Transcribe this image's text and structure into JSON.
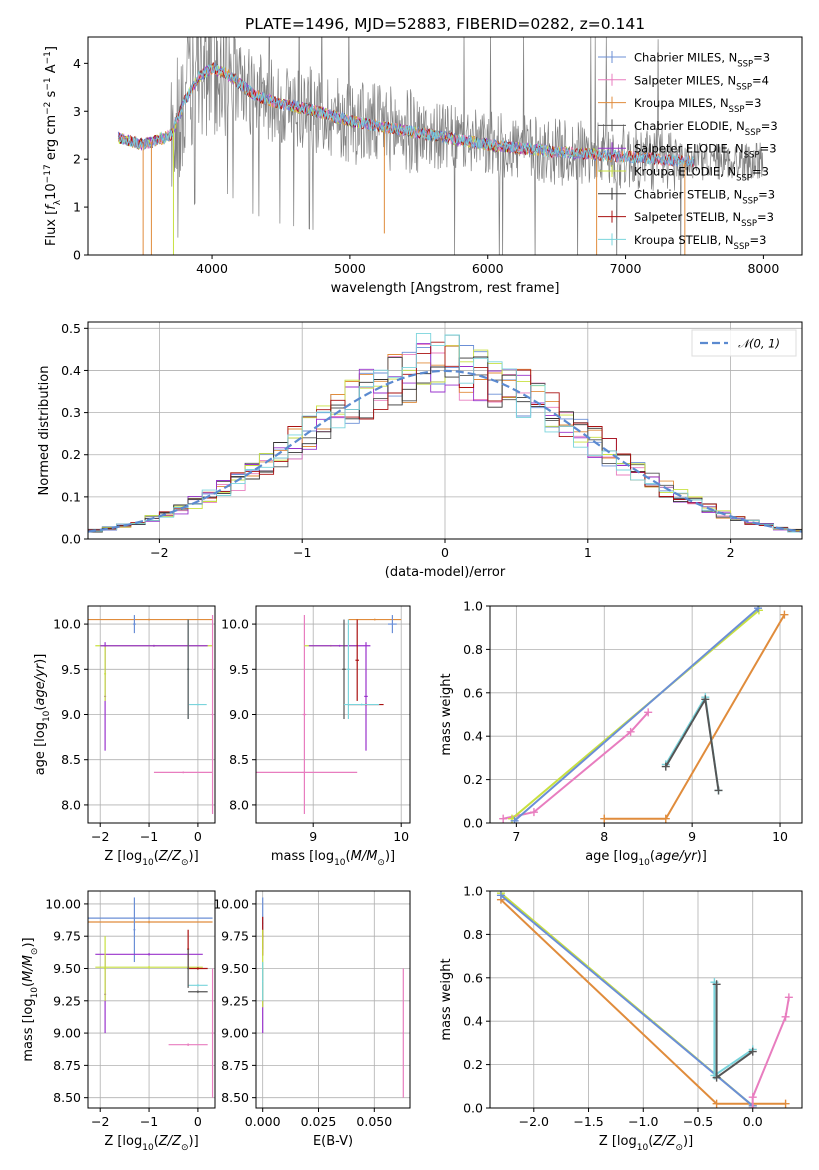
{
  "figure_title": "PLATE=1496, MJD=52883, FIBERID=0282, z=0.141",
  "colors": {
    "Chabrier MILES": "#6b8fd6",
    "Salpeter MILES": "#e87dbf",
    "Kroupa MILES": "#e08c3c",
    "Chabrier ELODIE": "#555555",
    "Salpeter ELODIE": "#9933cc",
    "Kroupa ELODIE": "#c8e040",
    "Chabrier STELIB": "#333333",
    "Salpeter STELIB": "#aa1111",
    "Kroupa STELIB": "#7ad4dc",
    "data": "#808080",
    "normal": "#5b8ad0"
  },
  "legend": [
    {
      "key": "Chabrier MILES",
      "label": "Chabrier MILES, N",
      "sub": "SSP",
      "tail": "=3"
    },
    {
      "key": "Salpeter MILES",
      "label": "Salpeter MILES, N",
      "sub": "SSP",
      "tail": "=4"
    },
    {
      "key": "Kroupa MILES",
      "label": "Kroupa MILES, N",
      "sub": "SSP",
      "tail": "=3"
    },
    {
      "key": "Chabrier ELODIE",
      "label": "Chabrier ELODIE, N",
      "sub": "SSP",
      "tail": "=3"
    },
    {
      "key": "Salpeter ELODIE",
      "label": "Salpeter ELODIE, N",
      "sub": "SSP",
      "tail": "=3"
    },
    {
      "key": "Kroupa ELODIE",
      "label": "Kroupa ELODIE, N",
      "sub": "SSP",
      "tail": "=3"
    },
    {
      "key": "Chabrier STELIB",
      "label": "Chabrier STELIB, N",
      "sub": "SSP",
      "tail": "=3"
    },
    {
      "key": "Salpeter STELIB",
      "label": "Salpeter STELIB, N",
      "sub": "SSP",
      "tail": "=3"
    },
    {
      "key": "Kroupa STELIB",
      "label": "Kroupa STELIB, N",
      "sub": "SSP",
      "tail": "=3"
    }
  ],
  "chart_data": [
    {
      "id": "spectrum",
      "type": "line",
      "xlabel": "wavelength [Angstrom, rest frame]",
      "ylabel": "Flux [f_λ 10^-17 erg cm^-2 s^-1 A^-1]",
      "xlim": [
        3100,
        8280
      ],
      "ylim": [
        0,
        4.55
      ],
      "xticks": [
        4000,
        5000,
        6000,
        7000,
        8000
      ],
      "yticks": [
        0,
        1,
        2,
        3,
        4
      ],
      "model_continuum": {
        "x": [
          3320,
          3500,
          3700,
          3800,
          3900,
          4000,
          4100,
          4300,
          4500,
          4700,
          5000,
          5500,
          6000,
          6500,
          7000,
          7500
        ],
        "y": [
          2.45,
          2.3,
          2.5,
          3.2,
          3.7,
          3.9,
          3.8,
          3.35,
          3.15,
          3.05,
          2.8,
          2.55,
          2.3,
          2.15,
          2.05,
          1.95
        ]
      },
      "legend_position": "upper right"
    },
    {
      "id": "residuals",
      "type": "line",
      "xlabel": "(data-model)/error",
      "ylabel": "Normed distribution",
      "xlim": [
        -2.5,
        2.5
      ],
      "ylim": [
        0,
        0.515
      ],
      "xticks": [
        -2,
        -1,
        0,
        1,
        2
      ],
      "yticks": [
        0.0,
        0.1,
        0.2,
        0.3,
        0.4,
        0.5
      ],
      "normal_label": "𝒩(0, 1)",
      "legend_position": "upper right"
    },
    {
      "id": "age_vs_Z",
      "type": "scatter",
      "xlabel": "Z [log10(Z/Z⊙)]",
      "ylabel": "age  [log10(age/yr)]",
      "xlim": [
        -2.25,
        0.35
      ],
      "ylim": [
        7.8,
        10.2
      ],
      "xticks": [
        -2,
        -1,
        0
      ],
      "yticks": [
        8.0,
        8.5,
        9.0,
        9.5,
        10.0
      ],
      "points": [
        {
          "key": "Kroupa MILES",
          "x": -1.0,
          "xerr": 1.3,
          "y": 10.05,
          "yerr": 0.01
        },
        {
          "key": "Chabrier MILES",
          "x": -1.3,
          "xerr": 0.03,
          "y": 10.0,
          "yerr": 0.1
        },
        {
          "key": "Kroupa ELODIE",
          "x": -0.9,
          "xerr": 1.2,
          "y": 9.76,
          "yerr": 0.01
        },
        {
          "key": "Salpeter ELODIE",
          "x": -0.9,
          "xerr": 1.1,
          "y": 9.76,
          "yerr": 0.01
        },
        {
          "key": "Salpeter ELODIE",
          "x": -1.9,
          "xerr": 0.02,
          "y": 9.2,
          "yerr": 0.6
        },
        {
          "key": "Kroupa ELODIE",
          "x": -1.9,
          "xerr": 0.02,
          "y": 9.45,
          "yerr": 0.3
        },
        {
          "key": "Kroupa STELIB",
          "x": 0.0,
          "xerr": 0.18,
          "y": 9.11,
          "yerr": 0.01
        },
        {
          "key": "Kroupa STELIB",
          "x": -0.2,
          "xerr": 0.02,
          "y": 9.5,
          "yerr": 0.55
        },
        {
          "key": "Chabrier ELODIE",
          "x": -0.2,
          "xerr": 0.02,
          "y": 9.5,
          "yerr": 0.55
        },
        {
          "key": "Salpeter MILES",
          "x": -0.3,
          "xerr": 0.6,
          "y": 8.36,
          "yerr": 0.01
        },
        {
          "key": "Salpeter MILES",
          "x": 0.3,
          "xerr": 0.02,
          "y": 9.0,
          "yerr": 1.1
        }
      ]
    },
    {
      "id": "age_vs_mass",
      "type": "scatter",
      "xlabel": "mass [log10(M/M⊙)]",
      "ylabel": "",
      "xlim": [
        8.35,
        10.1
      ],
      "ylim": [
        7.8,
        10.2
      ],
      "xticks": [
        9,
        10
      ],
      "yticks": [
        8.0,
        8.5,
        9.0,
        9.5,
        10.0
      ],
      "points": [
        {
          "key": "Kroupa MILES",
          "x": 9.7,
          "xerr": 0.3,
          "y": 10.05,
          "yerr": 0.01
        },
        {
          "key": "Chabrier MILES",
          "x": 9.9,
          "xerr": 0.05,
          "y": 10.0,
          "yerr": 0.1
        },
        {
          "key": "Salpeter MILES",
          "x": 8.9,
          "xerr": 0.02,
          "y": 9.0,
          "yerr": 1.1
        },
        {
          "key": "Salpeter MILES",
          "x": 8.9,
          "xerr": 0.6,
          "y": 8.36,
          "yerr": 0.01
        },
        {
          "key": "Kroupa ELODIE",
          "x": 9.2,
          "xerr": 0.3,
          "y": 9.76,
          "yerr": 0.01
        },
        {
          "key": "Salpeter ELODIE",
          "x": 9.3,
          "xerr": 0.35,
          "y": 9.76,
          "yerr": 0.01
        },
        {
          "key": "Salpeter ELODIE",
          "x": 9.6,
          "xerr": 0.02,
          "y": 9.2,
          "yerr": 0.6
        },
        {
          "key": "Chabrier ELODIE",
          "x": 9.35,
          "xerr": 0.02,
          "y": 9.5,
          "yerr": 0.55
        },
        {
          "key": "Kroupa STELIB",
          "x": 9.4,
          "xerr": 0.02,
          "y": 9.5,
          "yerr": 0.55
        },
        {
          "key": "Salpeter STELIB",
          "x": 9.5,
          "xerr": 0.02,
          "y": 9.6,
          "yerr": 0.45
        },
        {
          "key": "Salpeter STELIB",
          "x": 9.6,
          "xerr": 0.2,
          "y": 9.11,
          "yerr": 0.01
        },
        {
          "key": "Kroupa STELIB",
          "x": 9.55,
          "xerr": 0.2,
          "y": 9.11,
          "yerr": 0.01
        }
      ]
    },
    {
      "id": "weight_vs_age",
      "type": "line",
      "xlabel": "age  [log10(age/yr)]",
      "ylabel": "mass weight",
      "xlim": [
        6.7,
        10.25
      ],
      "ylim": [
        0,
        1
      ],
      "xticks": [
        7,
        8,
        9,
        10
      ],
      "yticks": [
        0.0,
        0.2,
        0.4,
        0.6,
        0.8,
        1.0
      ],
      "series": [
        {
          "key": "Kroupa MILES",
          "x": [
            8.0,
            8.7,
            10.05
          ],
          "y": [
            0.02,
            0.02,
            0.96
          ]
        },
        {
          "key": "Salpeter MILES",
          "x": [
            6.85,
            7.2,
            8.3,
            8.5
          ],
          "y": [
            0.02,
            0.05,
            0.42,
            0.51
          ]
        },
        {
          "key": "Kroupa ELODIE",
          "x": [
            6.95,
            9.76
          ],
          "y": [
            0.02,
            0.98
          ]
        },
        {
          "key": "Chabrier MILES",
          "x": [
            6.98,
            9.75
          ],
          "y": [
            0.01,
            0.99
          ]
        },
        {
          "key": "Kroupa STELIB",
          "x": [
            8.7,
            9.15,
            9.3
          ],
          "y": [
            0.27,
            0.58,
            0.15
          ]
        },
        {
          "key": "Chabrier ELODIE",
          "x": [
            8.7,
            9.15,
            9.3
          ],
          "y": [
            0.26,
            0.57,
            0.15
          ]
        }
      ]
    },
    {
      "id": "mass_vs_Z",
      "type": "scatter",
      "xlabel": "Z [log10(Z/Z⊙)]",
      "ylabel": "mass [log10(M/M⊙)]",
      "xlim": [
        -2.25,
        0.35
      ],
      "ylim": [
        8.42,
        10.1
      ],
      "xticks": [
        -2,
        -1,
        0
      ],
      "yticks": [
        8.5,
        8.75,
        9.0,
        9.25,
        9.5,
        9.75,
        10.0
      ],
      "points": [
        {
          "key": "Chabrier MILES",
          "x": -1.0,
          "xerr": 1.3,
          "y": 9.89,
          "yerr": 0.01
        },
        {
          "key": "Kroupa MILES",
          "x": -1.0,
          "xerr": 1.3,
          "y": 9.86,
          "yerr": 0.01
        },
        {
          "key": "Chabrier MILES",
          "x": -1.3,
          "xerr": 0.02,
          "y": 9.8,
          "yerr": 0.25
        },
        {
          "key": "Salpeter ELODIE",
          "x": -1.0,
          "xerr": 1.1,
          "y": 9.61,
          "yerr": 0.01
        },
        {
          "key": "Salpeter ELODIE",
          "x": -1.9,
          "xerr": 0.02,
          "y": 9.3,
          "yerr": 0.3
        },
        {
          "key": "Kroupa ELODIE",
          "x": -1.0,
          "xerr": 1.1,
          "y": 9.51,
          "yerr": 0.01
        },
        {
          "key": "Kroupa ELODIE",
          "x": -1.9,
          "xerr": 0.02,
          "y": 9.5,
          "yerr": 0.25
        },
        {
          "key": "Salpeter STELIB",
          "x": -0.2,
          "xerr": 0.02,
          "y": 9.65,
          "yerr": 0.15
        },
        {
          "key": "Salpeter STELIB",
          "x": 0.0,
          "xerr": 0.2,
          "y": 9.5,
          "yerr": 0.01
        },
        {
          "key": "Kroupa STELIB",
          "x": 0.0,
          "xerr": 0.2,
          "y": 9.37,
          "yerr": 0.01
        },
        {
          "key": "Chabrier ELODIE",
          "x": 0.0,
          "xerr": 0.2,
          "y": 9.32,
          "yerr": 0.01
        },
        {
          "key": "Chabrier ELODIE",
          "x": -0.2,
          "xerr": 0.02,
          "y": 9.5,
          "yerr": 0.15
        },
        {
          "key": "Salpeter MILES",
          "x": -0.2,
          "xerr": 0.4,
          "y": 8.91,
          "yerr": 0.01
        },
        {
          "key": "Salpeter MILES",
          "x": 0.3,
          "xerr": 0.02,
          "y": 9.0,
          "yerr": 0.5
        }
      ]
    },
    {
      "id": "mass_vs_EBV",
      "type": "scatter",
      "xlabel": "E(B-V)",
      "ylabel": "",
      "xlim": [
        -0.003,
        0.066
      ],
      "ylim": [
        8.42,
        10.1
      ],
      "xticks": [
        0.0,
        0.025,
        0.05
      ],
      "xticklabels": [
        "0.000",
        "0.025",
        "0.050"
      ],
      "yticks": [
        8.5,
        8.75,
        9.0,
        9.25,
        9.5,
        9.75,
        10.0
      ],
      "points": [
        {
          "key": "Chabrier MILES",
          "x": 0.0,
          "xerr": 0.0003,
          "y": 9.85,
          "yerr": 0.2
        },
        {
          "key": "Salpeter STELIB",
          "x": 0.0,
          "xerr": 0.0003,
          "y": 9.75,
          "yerr": 0.15
        },
        {
          "key": "Salpeter ELODIE",
          "x": 0.0,
          "xerr": 0.0003,
          "y": 9.25,
          "yerr": 0.25
        },
        {
          "key": "Kroupa ELODIE",
          "x": 0.0,
          "xerr": 0.0003,
          "y": 9.5,
          "yerr": 0.3
        },
        {
          "key": "Kroupa STELIB",
          "x": 0.0,
          "xerr": 0.0003,
          "y": 9.4,
          "yerr": 0.15
        },
        {
          "key": "Salpeter MILES",
          "x": 0.063,
          "xerr": 0.0003,
          "y": 9.0,
          "yerr": 0.5
        }
      ]
    },
    {
      "id": "weight_vs_Z",
      "type": "line",
      "xlabel": "Z [log10(Z/Z⊙)]",
      "ylabel": "mass weight",
      "xlim": [
        -2.4,
        0.45
      ],
      "ylim": [
        0,
        1
      ],
      "xticks": [
        -2.0,
        -1.5,
        -1.0,
        -0.5,
        0.0
      ],
      "xticklabels": [
        "−2.0",
        "−1.5",
        "−1.0",
        "−0.5",
        "0.0"
      ],
      "yticks": [
        0.0,
        0.2,
        0.4,
        0.6,
        0.8,
        1.0
      ],
      "series": [
        {
          "key": "Kroupa MILES",
          "x": [
            -2.3,
            -0.33,
            0.3
          ],
          "y": [
            0.96,
            0.02,
            0.02
          ]
        },
        {
          "key": "Kroupa ELODIE",
          "x": [
            -2.3,
            0.0
          ],
          "y": [
            0.99,
            0.01
          ]
        },
        {
          "key": "Chabrier MILES",
          "x": [
            -2.3,
            0.0
          ],
          "y": [
            0.98,
            0.01
          ]
        },
        {
          "key": "Salpeter MILES",
          "x": [
            -0.0,
            0.0,
            0.3,
            0.33
          ],
          "y": [
            0.0,
            0.05,
            0.42,
            0.51
          ]
        },
        {
          "key": "Kroupa STELIB",
          "x": [
            -0.35,
            -0.35,
            0.0
          ],
          "y": [
            0.58,
            0.15,
            0.27
          ]
        },
        {
          "key": "Chabrier ELODIE",
          "x": [
            -0.33,
            -0.33,
            0.0
          ],
          "y": [
            0.57,
            0.14,
            0.26
          ]
        }
      ]
    }
  ]
}
